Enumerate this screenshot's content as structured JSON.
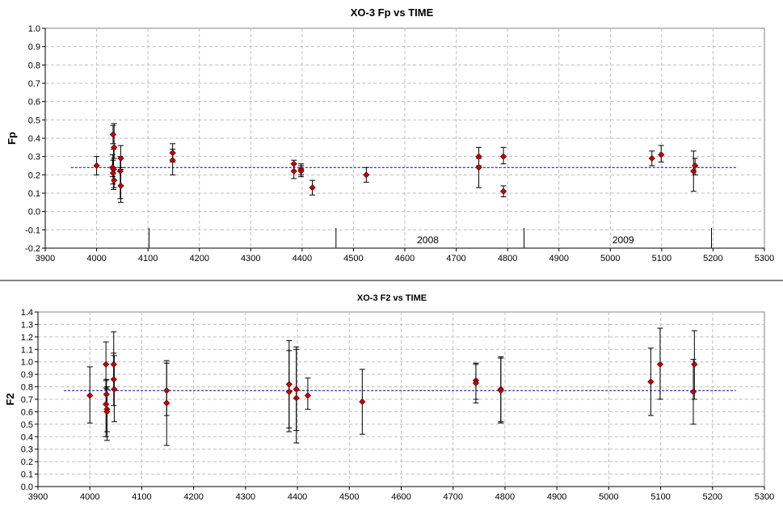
{
  "chart_data": [
    {
      "type": "scatter",
      "title": "XO-3 Fp vs TIME",
      "xlabel": "",
      "ylabel": "Fp",
      "xlim": [
        3900,
        5300
      ],
      "ylim": [
        -0.2,
        1.0
      ],
      "x_ticks": [
        "3900",
        "4000",
        "4100",
        "4200",
        "4300",
        "4400",
        "4500",
        "4600",
        "4700",
        "4800",
        "4900",
        "5000",
        "5100",
        "5200",
        "5300"
      ],
      "y_ticks": [
        "-0.2",
        "-0.1",
        "0.0",
        "0.1",
        "0.2",
        "0.3",
        "0.4",
        "0.5",
        "0.6",
        "0.7",
        "0.8",
        "0.9",
        "1.0"
      ],
      "grid": true,
      "marker_color": "#cc0000",
      "mean_line": {
        "y": 0.24,
        "x_from": 3950,
        "x_to": 5245,
        "color": "#00008b"
      },
      "year_labels": [
        {
          "text": "2008",
          "x": 4645
        },
        {
          "text": "2009",
          "x": 5025
        }
      ],
      "year_dividers": [
        4102,
        4466,
        4832,
        5197
      ],
      "points": [
        {
          "x": 4000,
          "y": 0.25,
          "lo": 0.2,
          "hi": 0.3
        },
        {
          "x": 4032,
          "y": 0.42,
          "lo": 0.37,
          "hi": 0.47
        },
        {
          "x": 4034,
          "y": 0.35,
          "lo": 0.29,
          "hi": 0.48
        },
        {
          "x": 4031,
          "y": 0.24,
          "lo": 0.19,
          "hi": 0.31
        },
        {
          "x": 4033,
          "y": 0.23,
          "lo": 0.12,
          "hi": 0.34
        },
        {
          "x": 4032,
          "y": 0.21,
          "lo": 0.15,
          "hi": 0.28
        },
        {
          "x": 4034,
          "y": 0.17,
          "lo": 0.13,
          "hi": 0.23
        },
        {
          "x": 4047,
          "y": 0.29,
          "lo": 0.23,
          "hi": 0.36
        },
        {
          "x": 4047,
          "y": 0.14,
          "lo": 0.05,
          "hi": 0.24
        },
        {
          "x": 4046,
          "y": 0.22,
          "lo": 0.07,
          "hi": 0.3
        },
        {
          "x": 4148,
          "y": 0.32,
          "lo": 0.27,
          "hi": 0.37
        },
        {
          "x": 4148,
          "y": 0.28,
          "lo": 0.2,
          "hi": 0.34
        },
        {
          "x": 4384,
          "y": 0.26,
          "lo": 0.22,
          "hi": 0.28
        },
        {
          "x": 4384,
          "y": 0.22,
          "lo": 0.18,
          "hi": 0.26
        },
        {
          "x": 4398,
          "y": 0.23,
          "lo": 0.2,
          "hi": 0.26
        },
        {
          "x": 4398,
          "y": 0.22,
          "lo": 0.19,
          "hi": 0.25
        },
        {
          "x": 4420,
          "y": 0.13,
          "lo": 0.09,
          "hi": 0.17
        },
        {
          "x": 4525,
          "y": 0.2,
          "lo": 0.16,
          "hi": 0.24
        },
        {
          "x": 4744,
          "y": 0.3,
          "lo": 0.25,
          "hi": 0.35
        },
        {
          "x": 4744,
          "y": 0.24,
          "lo": 0.13,
          "hi": 0.29
        },
        {
          "x": 4792,
          "y": 0.3,
          "lo": 0.26,
          "hi": 0.35
        },
        {
          "x": 4792,
          "y": 0.11,
          "lo": 0.08,
          "hi": 0.14
        },
        {
          "x": 5081,
          "y": 0.29,
          "lo": 0.25,
          "hi": 0.33
        },
        {
          "x": 5099,
          "y": 0.31,
          "lo": 0.27,
          "hi": 0.36
        },
        {
          "x": 5162,
          "y": 0.22,
          "lo": 0.11,
          "hi": 0.33
        },
        {
          "x": 5165,
          "y": 0.25,
          "lo": 0.2,
          "hi": 0.29
        }
      ]
    },
    {
      "type": "scatter",
      "title": "XO-3 F2 vs TIME",
      "xlabel": "",
      "ylabel": "F2",
      "xlim": [
        3900,
        5300
      ],
      "ylim": [
        0.0,
        1.4
      ],
      "x_ticks": [
        "3900",
        "4000",
        "4100",
        "4200",
        "4300",
        "4400",
        "4500",
        "4600",
        "4700",
        "4800",
        "4900",
        "5000",
        "5100",
        "5200",
        "5300"
      ],
      "y_ticks": [
        "0.0",
        "0.1",
        "0.2",
        "0.3",
        "0.4",
        "0.5",
        "0.6",
        "0.7",
        "0.8",
        "0.9",
        "1.0",
        "1.1",
        "1.2",
        "1.3",
        "1.4"
      ],
      "grid": true,
      "marker_color": "#cc0000",
      "mean_line": {
        "y": 0.77,
        "x_from": 3950,
        "x_to": 5245,
        "color": "#00008b"
      },
      "points": [
        {
          "x": 4000,
          "y": 0.73,
          "lo": 0.51,
          "hi": 0.96
        },
        {
          "x": 4031,
          "y": 0.98,
          "lo": 0.79,
          "hi": 1.16
        },
        {
          "x": 4032,
          "y": 0.74,
          "lo": 0.6,
          "hi": 0.86
        },
        {
          "x": 4031,
          "y": 0.66,
          "lo": 0.4,
          "hi": 0.85
        },
        {
          "x": 4033,
          "y": 0.62,
          "lo": 0.37,
          "hi": 0.8
        },
        {
          "x": 4033,
          "y": 0.6,
          "lo": 0.44,
          "hi": 0.78
        },
        {
          "x": 4046,
          "y": 0.98,
          "lo": 0.78,
          "hi": 1.24
        },
        {
          "x": 4046,
          "y": 0.86,
          "lo": 0.65,
          "hi": 1.07
        },
        {
          "x": 4047,
          "y": 0.78,
          "lo": 0.52,
          "hi": 1.05
        },
        {
          "x": 4148,
          "y": 0.77,
          "lo": 0.57,
          "hi": 1.01
        },
        {
          "x": 4148,
          "y": 0.67,
          "lo": 0.33,
          "hi": 0.99
        },
        {
          "x": 4384,
          "y": 0.82,
          "lo": 0.47,
          "hi": 1.17
        },
        {
          "x": 4384,
          "y": 0.76,
          "lo": 0.44,
          "hi": 1.09
        },
        {
          "x": 4398,
          "y": 0.78,
          "lo": 0.45,
          "hi": 1.12
        },
        {
          "x": 4398,
          "y": 0.71,
          "lo": 0.35,
          "hi": 1.1
        },
        {
          "x": 4420,
          "y": 0.73,
          "lo": 0.62,
          "hi": 0.87
        },
        {
          "x": 4525,
          "y": 0.68,
          "lo": 0.42,
          "hi": 0.94
        },
        {
          "x": 4744,
          "y": 0.85,
          "lo": 0.7,
          "hi": 0.99
        },
        {
          "x": 4744,
          "y": 0.83,
          "lo": 0.67,
          "hi": 0.98
        },
        {
          "x": 4792,
          "y": 0.78,
          "lo": 0.51,
          "hi": 1.04
        },
        {
          "x": 4792,
          "y": 0.77,
          "lo": 0.52,
          "hi": 1.03
        },
        {
          "x": 5081,
          "y": 0.84,
          "lo": 0.57,
          "hi": 1.11
        },
        {
          "x": 5099,
          "y": 0.98,
          "lo": 0.7,
          "hi": 1.27
        },
        {
          "x": 5163,
          "y": 0.76,
          "lo": 0.5,
          "hi": 1.02
        },
        {
          "x": 5165,
          "y": 0.98,
          "lo": 0.7,
          "hi": 1.25
        }
      ]
    }
  ]
}
